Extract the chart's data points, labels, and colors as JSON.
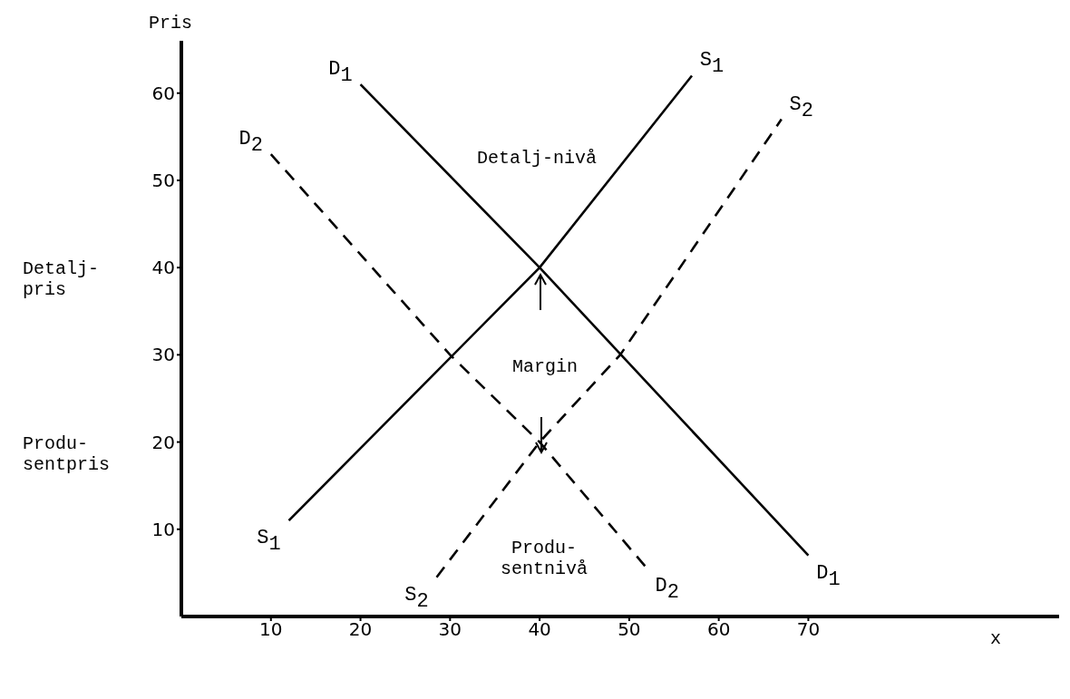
{
  "chart_data": {
    "type": "line",
    "xlabel": "x",
    "ylabel": "Pris",
    "xlim": [
      0,
      98
    ],
    "ylim": [
      0,
      66
    ],
    "xticks": [
      10,
      20,
      30,
      40,
      50,
      60,
      70
    ],
    "yticks": [
      10,
      20,
      30,
      40,
      50,
      60
    ],
    "grid": false,
    "legend": false,
    "marker": "none",
    "series": [
      {
        "name": "D$_{1}$",
        "color": "#000000",
        "line_style": "solid",
        "x": [
          20,
          40,
          70
        ],
        "values": [
          61,
          40,
          7
        ]
      },
      {
        "name": "S$_{1}$",
        "color": "#000000",
        "line_style": "solid",
        "x": [
          12,
          40,
          57
        ],
        "values": [
          11,
          40,
          62
        ]
      },
      {
        "name": "D$_{2}$",
        "color": "#000000",
        "line_style": "dashed",
        "x": [
          10,
          30,
          40,
          52
        ],
        "values": [
          53,
          30,
          20,
          5.5
        ]
      },
      {
        "name": "S$_{2}$",
        "color": "#000000",
        "line_style": "dashed",
        "x": [
          28.5,
          40,
          49,
          67
        ],
        "values": [
          4.5,
          20,
          30,
          57
        ]
      }
    ],
    "annotations": [
      "Detalj-nivå",
      "Margin",
      "Produ-\nsentnivå",
      "Detalj-\npris",
      "Produ-\nsentpris"
    ]
  }
}
